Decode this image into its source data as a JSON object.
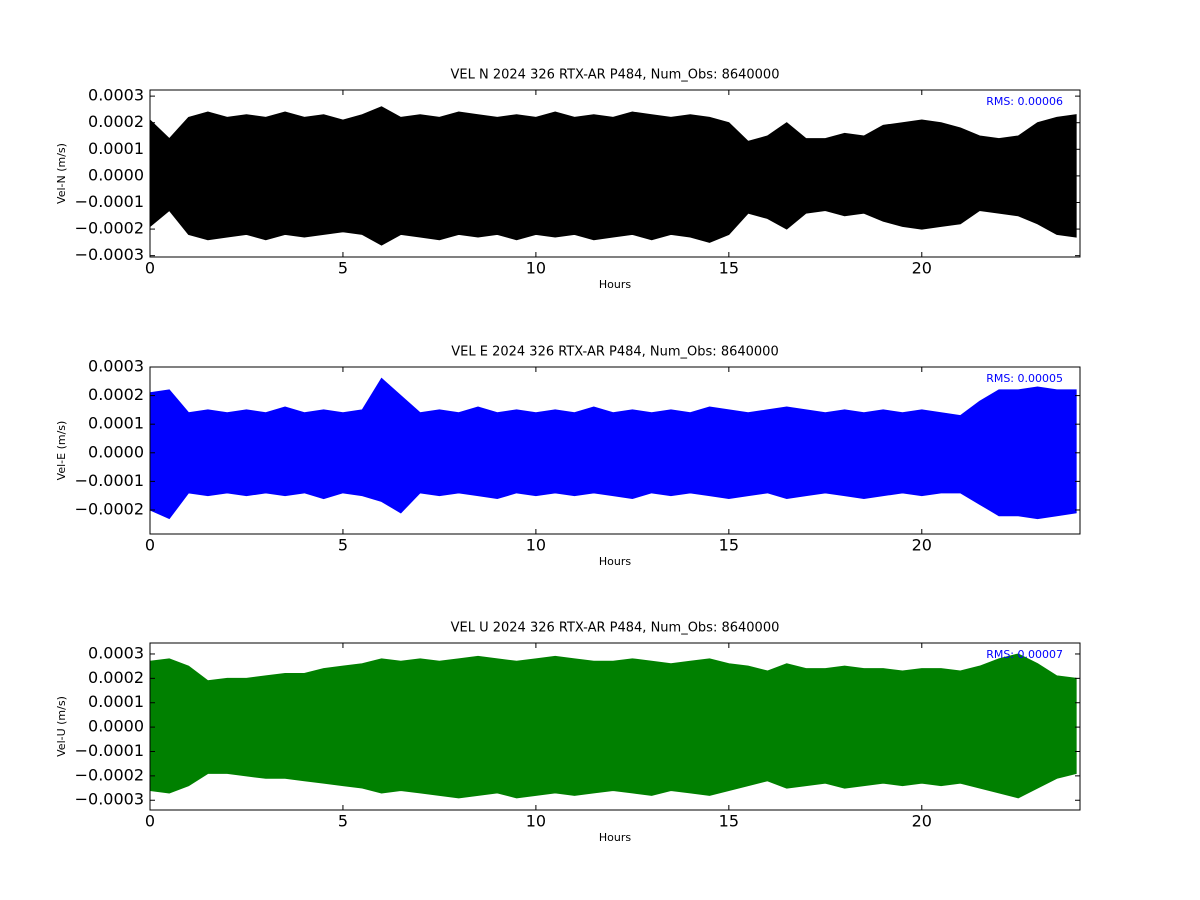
{
  "chart_data": [
    {
      "type": "band",
      "title": "VEL N 2024 326 RTX-AR  P484, Num_Obs: 8640000",
      "x_label": "Hours",
      "y_label": "Vel-N (m/s)",
      "annotation": "RMS:  0.00006",
      "annotation_color": "#0000ff",
      "color": "#000000",
      "xlim": [
        0,
        24.1
      ],
      "ylim": [
        -0.000305,
        0.000323
      ],
      "xticks": [
        0,
        5,
        10,
        15,
        20
      ],
      "yticks": [
        {
          "value": -0.0003,
          "label": "−0.0003"
        },
        {
          "value": -0.0002,
          "label": "−0.0002"
        },
        {
          "value": -0.0001,
          "label": "−0.0001"
        },
        {
          "value": 0,
          "label": "0.0000"
        },
        0.0001,
        0.0002,
        0.0003
      ],
      "x": [
        0,
        0.5,
        1,
        1.5,
        2,
        2.5,
        3,
        3.5,
        4,
        4.5,
        5,
        5.5,
        6,
        6.5,
        7,
        7.5,
        8,
        8.5,
        9,
        9.5,
        10,
        10.5,
        11,
        11.5,
        12,
        12.5,
        13,
        13.5,
        14,
        14.5,
        15,
        15.5,
        16,
        16.5,
        17,
        17.5,
        18,
        18.5,
        19,
        19.5,
        20,
        20.5,
        21,
        21.5,
        22,
        22.5,
        23,
        23.5,
        24
      ],
      "upper": [
        0.00021,
        0.00014,
        0.00022,
        0.00024,
        0.00022,
        0.00023,
        0.00022,
        0.00024,
        0.00022,
        0.00023,
        0.00021,
        0.00023,
        0.00026,
        0.00022,
        0.00023,
        0.00022,
        0.00024,
        0.00023,
        0.00022,
        0.00023,
        0.00022,
        0.00024,
        0.00022,
        0.00023,
        0.00022,
        0.00024,
        0.00023,
        0.00022,
        0.00023,
        0.00022,
        0.0002,
        0.00013,
        0.00015,
        0.0002,
        0.00014,
        0.00014,
        0.00016,
        0.00015,
        0.00019,
        0.0002,
        0.00021,
        0.0002,
        0.00018,
        0.00015,
        0.00014,
        0.00015,
        0.0002,
        0.00022,
        0.00023
      ],
      "lower": [
        -0.00019,
        -0.00013,
        -0.00022,
        -0.00024,
        -0.00023,
        -0.00022,
        -0.00024,
        -0.00022,
        -0.00023,
        -0.00022,
        -0.00021,
        -0.00022,
        -0.00026,
        -0.00022,
        -0.00023,
        -0.00024,
        -0.00022,
        -0.00023,
        -0.00022,
        -0.00024,
        -0.00022,
        -0.00023,
        -0.00022,
        -0.00024,
        -0.00023,
        -0.00022,
        -0.00024,
        -0.00022,
        -0.00023,
        -0.00025,
        -0.00022,
        -0.00014,
        -0.00016,
        -0.0002,
        -0.00014,
        -0.00013,
        -0.00015,
        -0.00014,
        -0.00017,
        -0.00019,
        -0.0002,
        -0.00019,
        -0.00018,
        -0.00013,
        -0.00014,
        -0.00015,
        -0.00018,
        -0.00022,
        -0.00023
      ]
    },
    {
      "type": "band",
      "title": "VEL E 2024 326 RTX-AR  P484, Num_Obs: 8640000",
      "x_label": "Hours",
      "y_label": "Vel-E (m/s)",
      "annotation": "RMS:  0.00005",
      "annotation_color": "#0000ff",
      "color": "#0000ff",
      "xlim": [
        0,
        24.1
      ],
      "ylim": [
        -0.000284,
        0.0003
      ],
      "xticks": [
        0,
        5,
        10,
        15,
        20
      ],
      "yticks": [
        {
          "value": -0.0002,
          "label": "−0.0002"
        },
        {
          "value": -0.0001,
          "label": "−0.0001"
        },
        {
          "value": 0,
          "label": "0.0000"
        },
        0.0001,
        0.0002,
        0.0003
      ],
      "x": [
        0,
        0.5,
        1,
        1.5,
        2,
        2.5,
        3,
        3.5,
        4,
        4.5,
        5,
        5.5,
        6,
        6.5,
        7,
        7.5,
        8,
        8.5,
        9,
        9.5,
        10,
        10.5,
        11,
        11.5,
        12,
        12.5,
        13,
        13.5,
        14,
        14.5,
        15,
        15.5,
        16,
        16.5,
        17,
        17.5,
        18,
        18.5,
        19,
        19.5,
        20,
        20.5,
        21,
        21.5,
        22,
        22.5,
        23,
        23.5,
        24
      ],
      "upper": [
        0.00021,
        0.00022,
        0.00014,
        0.00015,
        0.00014,
        0.00015,
        0.00014,
        0.00016,
        0.00014,
        0.00015,
        0.00014,
        0.00015,
        0.00026,
        0.0002,
        0.00014,
        0.00015,
        0.00014,
        0.00016,
        0.00014,
        0.00015,
        0.00014,
        0.00015,
        0.00014,
        0.00016,
        0.00014,
        0.00015,
        0.00014,
        0.00015,
        0.00014,
        0.00016,
        0.00015,
        0.00014,
        0.00015,
        0.00016,
        0.00015,
        0.00014,
        0.00015,
        0.00014,
        0.00015,
        0.00014,
        0.00015,
        0.00014,
        0.00013,
        0.00018,
        0.00022,
        0.00022,
        0.00023,
        0.00022,
        0.00022
      ],
      "lower": [
        -0.0002,
        -0.00023,
        -0.00014,
        -0.00015,
        -0.00014,
        -0.00015,
        -0.00014,
        -0.00015,
        -0.00014,
        -0.00016,
        -0.00014,
        -0.00015,
        -0.00017,
        -0.00021,
        -0.00014,
        -0.00015,
        -0.00014,
        -0.00015,
        -0.00016,
        -0.00014,
        -0.00015,
        -0.00014,
        -0.00015,
        -0.00014,
        -0.00015,
        -0.00016,
        -0.00014,
        -0.00015,
        -0.00014,
        -0.00015,
        -0.00016,
        -0.00015,
        -0.00014,
        -0.00016,
        -0.00015,
        -0.00014,
        -0.00015,
        -0.00016,
        -0.00015,
        -0.00014,
        -0.00015,
        -0.00014,
        -0.00014,
        -0.00018,
        -0.00022,
        -0.00022,
        -0.00023,
        -0.00022,
        -0.00021
      ]
    },
    {
      "type": "band",
      "title": "VEL U 2024 326 RTX-AR  P484, Num_Obs: 8640000",
      "x_label": "Hours",
      "y_label": "Vel-U (m/s)",
      "annotation": "RMS:  0.00007",
      "annotation_color": "#0000ff",
      "color": "#008000",
      "xlim": [
        0,
        24.1
      ],
      "ylim": [
        -0.00034,
        0.000345
      ],
      "xticks": [
        0,
        5,
        10,
        15,
        20
      ],
      "yticks": [
        {
          "value": -0.0003,
          "label": "−0.0003"
        },
        {
          "value": -0.0002,
          "label": "−0.0002"
        },
        {
          "value": -0.0001,
          "label": "−0.0001"
        },
        {
          "value": 0,
          "label": "0.0000"
        },
        0.0001,
        0.0002,
        0.0003
      ],
      "x": [
        0,
        0.5,
        1,
        1.5,
        2,
        2.5,
        3,
        3.5,
        4,
        4.5,
        5,
        5.5,
        6,
        6.5,
        7,
        7.5,
        8,
        8.5,
        9,
        9.5,
        10,
        10.5,
        11,
        11.5,
        12,
        12.5,
        13,
        13.5,
        14,
        14.5,
        15,
        15.5,
        16,
        16.5,
        17,
        17.5,
        18,
        18.5,
        19,
        19.5,
        20,
        20.5,
        21,
        21.5,
        22,
        22.5,
        23,
        23.5,
        24
      ],
      "upper": [
        0.00027,
        0.00028,
        0.00025,
        0.00019,
        0.0002,
        0.0002,
        0.00021,
        0.00022,
        0.00022,
        0.00024,
        0.00025,
        0.00026,
        0.00028,
        0.00027,
        0.00028,
        0.00027,
        0.00028,
        0.00029,
        0.00028,
        0.00027,
        0.00028,
        0.00029,
        0.00028,
        0.00027,
        0.00027,
        0.00028,
        0.00027,
        0.00026,
        0.00027,
        0.00028,
        0.00026,
        0.00025,
        0.00023,
        0.00026,
        0.00024,
        0.00024,
        0.00025,
        0.00024,
        0.00024,
        0.00023,
        0.00024,
        0.00024,
        0.00023,
        0.00025,
        0.00028,
        0.0003,
        0.00026,
        0.00021,
        0.0002
      ],
      "lower": [
        -0.00026,
        -0.00027,
        -0.00024,
        -0.00019,
        -0.00019,
        -0.0002,
        -0.00021,
        -0.00021,
        -0.00022,
        -0.00023,
        -0.00024,
        -0.00025,
        -0.00027,
        -0.00026,
        -0.00027,
        -0.00028,
        -0.00029,
        -0.00028,
        -0.00027,
        -0.00029,
        -0.00028,
        -0.00027,
        -0.00028,
        -0.00027,
        -0.00026,
        -0.00027,
        -0.00028,
        -0.00026,
        -0.00027,
        -0.00028,
        -0.00026,
        -0.00024,
        -0.00022,
        -0.00025,
        -0.00024,
        -0.00023,
        -0.00025,
        -0.00024,
        -0.00023,
        -0.00024,
        -0.00023,
        -0.00024,
        -0.00023,
        -0.00025,
        -0.00027,
        -0.00029,
        -0.00025,
        -0.00021,
        -0.00019
      ]
    }
  ]
}
